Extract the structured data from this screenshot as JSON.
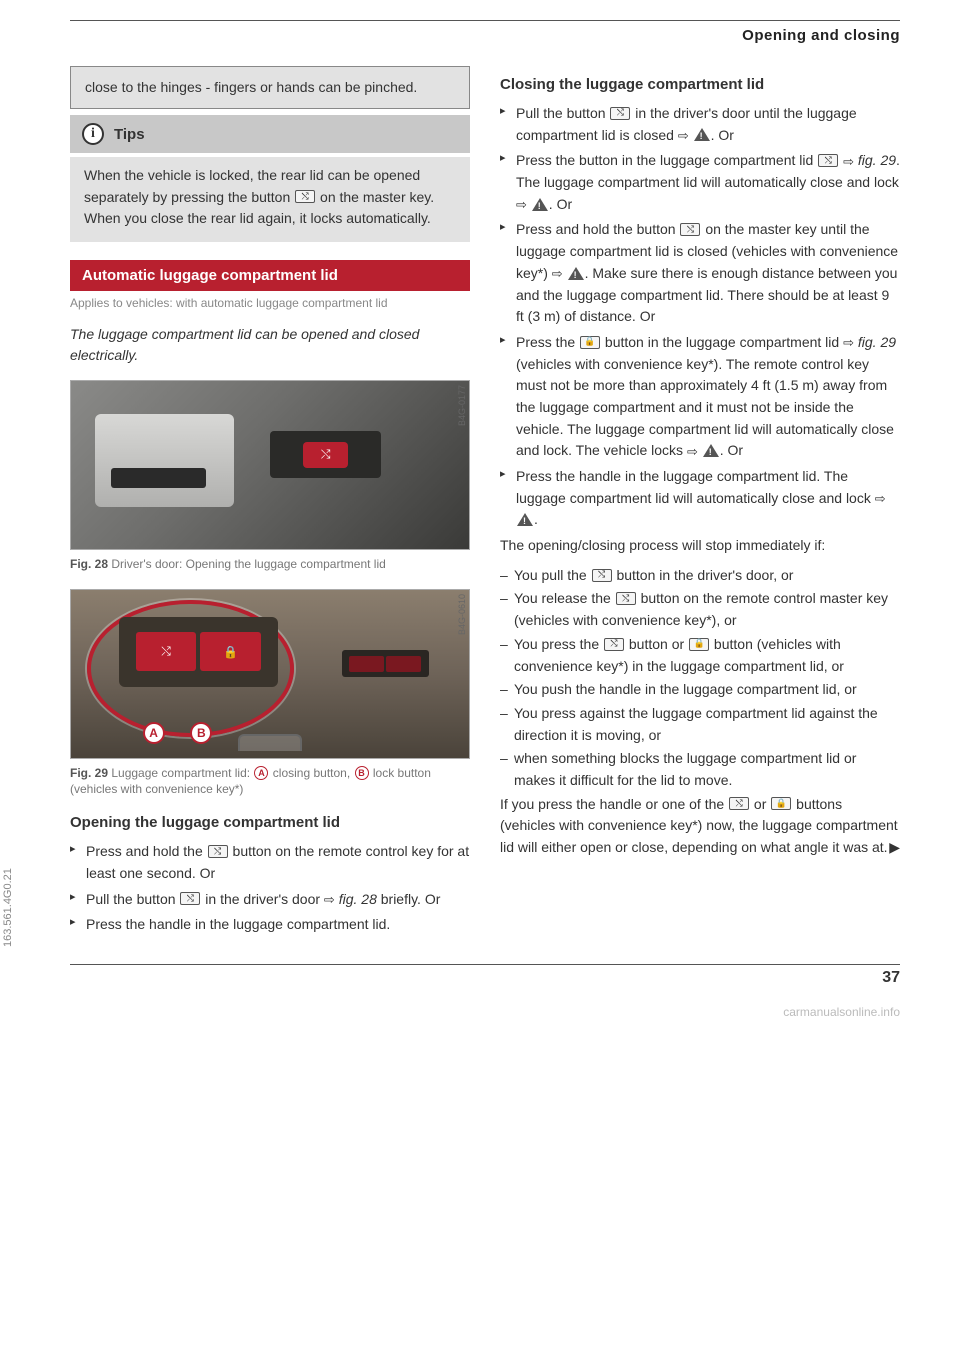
{
  "header": {
    "section_title": "Opening and closing"
  },
  "left": {
    "warn_cont": "close to the hinges - fingers or hands can be pinched.",
    "tips_label": "Tips",
    "tips_body": "When the vehicle is locked, the rear lid can be opened separately by pressing the button ⬚ on the master key. When you close the rear lid again, it locks automatically.",
    "red_heading": "Automatic luggage compartment lid",
    "applies_to": "Applies to vehicles: with automatic luggage compartment lid",
    "intro": "The luggage compartment lid can be opened and closed electrically.",
    "fig28": {
      "code": "B4G-0177",
      "caption_prefix": "Fig. 28",
      "caption_text": "Driver's door: Opening the luggage compartment lid"
    },
    "fig29": {
      "code": "B4G-0610",
      "caption_prefix": "Fig. 29",
      "caption_text_1": "Luggage compartment lid: ",
      "marker_a": "A",
      "caption_text_2": " closing button, ",
      "marker_b": "B",
      "caption_text_3": " lock button (vehicles with convenience key*)"
    },
    "open_heading": "Opening the luggage compartment lid",
    "open_items": [
      "Press and hold the ⬚ button on the remote control key for at least one second. Or",
      "Pull the button ⬚ in the driver's door ⇨ fig. 28 briefly. Or",
      "Press the handle in the luggage compartment lid."
    ]
  },
  "right": {
    "close_heading": "Closing the luggage compartment lid",
    "close_items": [
      "Pull the button ⬚ in the driver's door until the luggage compartment lid is closed ⇨ ⚠. Or",
      "Press the button in the luggage compartment lid ⬚ ⇨ fig. 29. The luggage compartment lid will automatically close and lock ⇨ ⚠. Or",
      "Press and hold the button ⬚ on the master key until the luggage compartment lid is closed (vehicles with convenience key*) ⇨ ⚠. Make sure there is enough distance between you and the luggage compartment lid. There should be at least 9 ft (3 m) of distance. Or",
      "Press the ⬚ button in the luggage compartment lid ⇨ fig. 29 (vehicles with convenience key*). The remote control key must not be more than approximately 4 ft (1.5 m) away from the luggage compartment and it must not be inside the vehicle. The luggage compartment lid will automatically close and lock. The vehicle locks ⇨ ⚠. Or",
      "Press the handle in the luggage compartment lid. The luggage compartment lid will automatically close and lock ⇨ ⚠."
    ],
    "stop_para": "The opening/closing process will stop immediately if:",
    "stop_items": [
      "You pull the ⬚ button in the driver's door, or",
      "You release the ⬚ button on the remote control master key (vehicles with convenience key*), or",
      "You press the ⬚ button or ⬚ button (vehicles with convenience key*) in the luggage compartment lid, or",
      "You push the handle in the luggage compartment lid, or",
      "You press against the luggage compartment lid against the direction it is moving, or",
      "when something blocks the luggage compartment lid or makes it difficult for the lid to move."
    ],
    "final_para": "If you press the handle or one of the ⬚ or ⬚ buttons (vehicles with convenience key*) now, the luggage compartment lid will either open or close, depending on what angle it was at."
  },
  "side_code": "163.561.4G0.21",
  "page_number": "37",
  "watermark": "carmanualsonline.info",
  "colors": {
    "red": "#b8202f",
    "gray_box": "#e2e2e2",
    "gray_tips": "#c8c8c8"
  }
}
